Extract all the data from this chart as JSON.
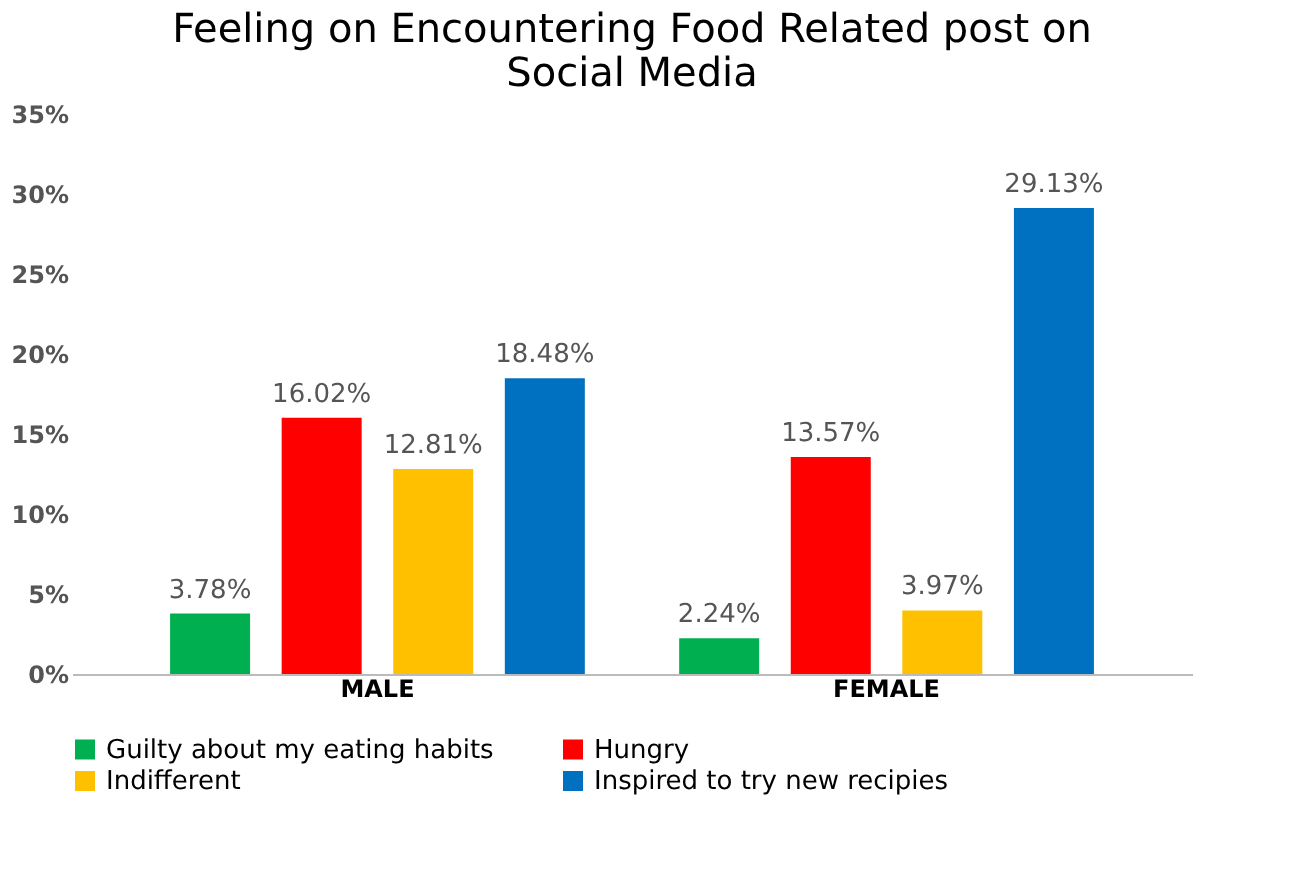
{
  "chart_data": {
    "type": "bar",
    "title": [
      "Feeling on Encountering Food Related post on",
      "Social Media"
    ],
    "categories": [
      "MALE",
      "FEMALE"
    ],
    "series": [
      {
        "name": "Guilty  about  my eating  habits",
        "color": "#00b050",
        "values": [
          3.78,
          2.24
        ],
        "value_labels": [
          "3.78%",
          "2.24%"
        ]
      },
      {
        "name": "Hungry",
        "color": "#ff0000",
        "values": [
          16.02,
          13.57
        ],
        "value_labels": [
          "16.02%",
          "13.57%"
        ]
      },
      {
        "name": "Indifferent",
        "color": "#ffc000",
        "values": [
          12.81,
          3.97
        ],
        "value_labels": [
          "12.81%",
          "3.97%"
        ]
      },
      {
        "name": "Inspired  to  try new recipies",
        "color": "#0070c0",
        "values": [
          18.48,
          29.13
        ],
        "value_labels": [
          "18.48%",
          "29.13%"
        ]
      }
    ],
    "ylim": [
      0,
      35
    ],
    "yticks": [
      {
        "value": 0,
        "label": "0%"
      },
      {
        "value": 5,
        "label": "5%"
      },
      {
        "value": 10,
        "label": "10%"
      },
      {
        "value": 15,
        "label": "15%"
      },
      {
        "value": 20,
        "label": "20%"
      },
      {
        "value": 25,
        "label": "25%"
      },
      {
        "value": 30,
        "label": "30%"
      },
      {
        "value": 35,
        "label": "35%"
      }
    ],
    "grid": false,
    "legend": "bottom"
  }
}
